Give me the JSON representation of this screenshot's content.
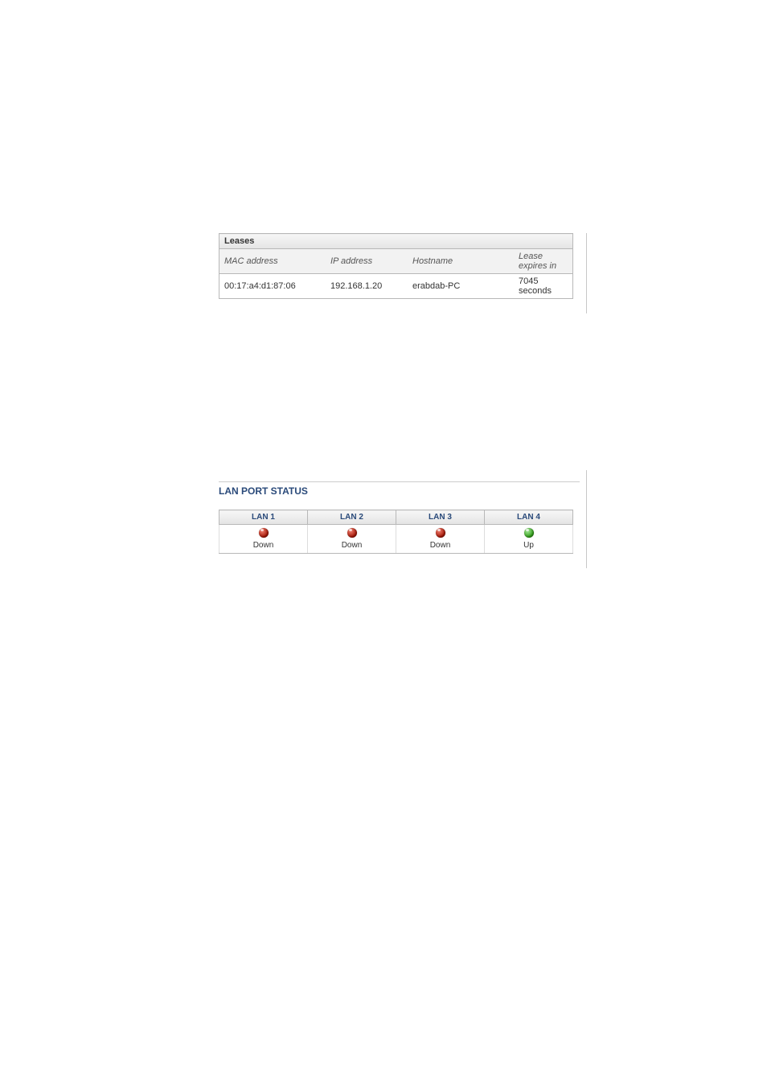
{
  "leases": {
    "title": "Leases",
    "columns": {
      "mac": "MAC address",
      "ip": "IP address",
      "host": "Hostname",
      "expires": "Lease expires in"
    },
    "rows": [
      {
        "mac": "00:17:a4:d1:87:06",
        "ip": "192.168.1.20",
        "host": "erabdab-PC",
        "expires": "7045 seconds"
      }
    ]
  },
  "lanStatus": {
    "title": "LAN PORT STATUS",
    "ports": [
      {
        "label": "LAN 1",
        "state": "Down",
        "up": false
      },
      {
        "label": "LAN 2",
        "state": "Down",
        "up": false
      },
      {
        "label": "LAN 3",
        "state": "Down",
        "up": false
      },
      {
        "label": "LAN 4",
        "state": "Up",
        "up": true
      }
    ]
  },
  "colors": {
    "downLed": "#a01000",
    "upLed": "#2a9a10",
    "headerText": "#2a4a7a",
    "border": "#b8b8b8"
  }
}
